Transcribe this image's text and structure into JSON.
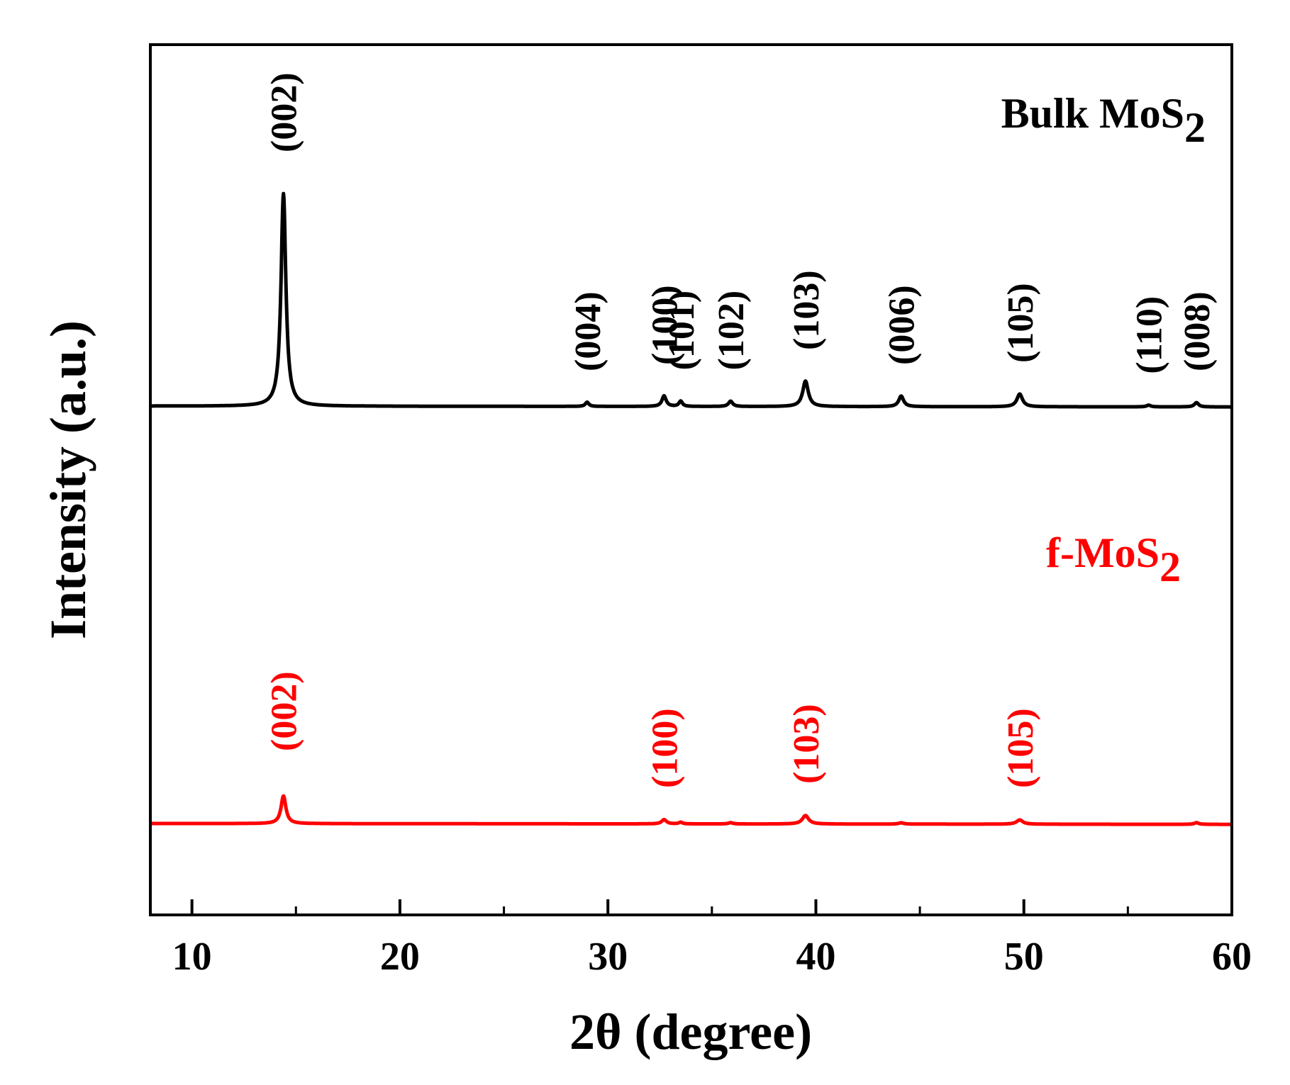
{
  "chart_data": {
    "type": "line",
    "xlabel": "2θ (degree)",
    "ylabel": "Intensity (a.u.)",
    "xlim": [
      8,
      60
    ],
    "xticks_major": [
      10,
      20,
      30,
      40,
      50,
      60
    ],
    "xticks_minor": [
      15,
      25,
      35,
      45,
      55
    ],
    "yticks": [],
    "grid": false,
    "series": [
      {
        "name": "Bulk MoS",
        "name_subscript": "2",
        "color": "#000000",
        "baseline": 0,
        "peaks": [
          {
            "x": 14.4,
            "height": 1.0,
            "width": 0.14,
            "label": "(002)"
          },
          {
            "x": 29.0,
            "height": 0.02,
            "width": 0.1,
            "label": "(004)"
          },
          {
            "x": 32.7,
            "height": 0.05,
            "width": 0.12,
            "label": "(100)"
          },
          {
            "x": 33.5,
            "height": 0.025,
            "width": 0.1,
            "label": "(101)"
          },
          {
            "x": 35.9,
            "height": 0.025,
            "width": 0.12,
            "label": "(102)"
          },
          {
            "x": 39.5,
            "height": 0.12,
            "width": 0.16,
            "label": "(103)"
          },
          {
            "x": 44.1,
            "height": 0.05,
            "width": 0.14,
            "label": "(006)"
          },
          {
            "x": 49.8,
            "height": 0.06,
            "width": 0.16,
            "label": "(105)"
          },
          {
            "x": 56.0,
            "height": 0.008,
            "width": 0.12,
            "label": "(110)"
          },
          {
            "x": 58.3,
            "height": 0.02,
            "width": 0.12,
            "label": "(008)"
          }
        ]
      },
      {
        "name": "f-MoS",
        "name_subscript": "2",
        "color": "#ff0000",
        "baseline": 0,
        "peaks": [
          {
            "x": 14.4,
            "height": 0.13,
            "width": 0.14,
            "label": "(002)"
          },
          {
            "x": 32.7,
            "height": 0.02,
            "width": 0.14,
            "label": "(100)"
          },
          {
            "x": 33.5,
            "height": 0.008,
            "width": 0.1,
            "label": ""
          },
          {
            "x": 35.9,
            "height": 0.006,
            "width": 0.12,
            "label": ""
          },
          {
            "x": 39.5,
            "height": 0.04,
            "width": 0.18,
            "label": "(103)"
          },
          {
            "x": 44.1,
            "height": 0.006,
            "width": 0.14,
            "label": ""
          },
          {
            "x": 49.8,
            "height": 0.02,
            "width": 0.18,
            "label": "(105)"
          },
          {
            "x": 58.3,
            "height": 0.008,
            "width": 0.12,
            "label": ""
          }
        ]
      }
    ]
  }
}
